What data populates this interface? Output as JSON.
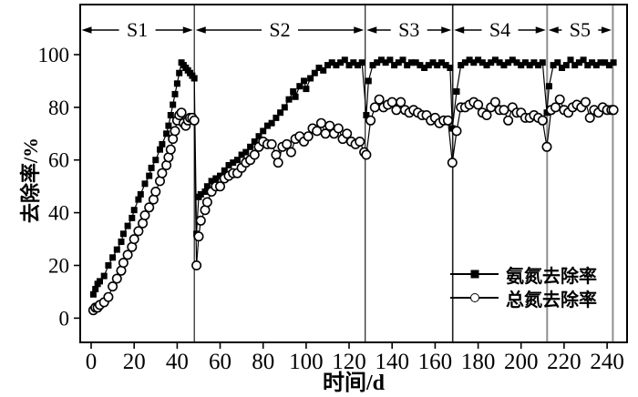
{
  "chart_data": {
    "type": "line",
    "title": "",
    "xlabel": "时间/d",
    "ylabel": "去除率/%",
    "xlim": [
      -5.1,
      249.3
    ],
    "ylim": [
      -9.2,
      119.0
    ],
    "xticks": [
      0,
      20,
      40,
      60,
      80,
      100,
      120,
      140,
      160,
      180,
      200,
      220,
      240
    ],
    "yticks": [
      0,
      20,
      40,
      60,
      80,
      100
    ],
    "grid": false,
    "legend_position": "lower-right-inside",
    "phases": [
      {
        "label": "S1",
        "start": -5.1,
        "end": 48.0
      },
      {
        "label": "S2",
        "start": 48.0,
        "end": 127.5
      },
      {
        "label": "S3",
        "start": 127.5,
        "end": 168.2
      },
      {
        "label": "S4",
        "start": 168.2,
        "end": 212.1
      },
      {
        "label": "S5",
        "start": 212.1,
        "end": 242.7
      }
    ],
    "dividers": [
      {
        "x": 48.0,
        "color": "#1f1f1f",
        "width": 1.2
      },
      {
        "x": 127.5,
        "color": "#1f1f1f",
        "width": 1.2
      },
      {
        "x": 168.2,
        "color": "#1f1f1f",
        "width": 1.6
      },
      {
        "x": 212.1,
        "color": "#8f8f8f",
        "width": 2
      },
      {
        "x": 242.7,
        "color": "#8f8f8f",
        "width": 2
      }
    ],
    "series": [
      {
        "id": "ammonia-nitrogen",
        "name": "氨氮去除率",
        "marker": "filled-square",
        "color": "#000000",
        "points": [
          [
            1,
            9
          ],
          [
            2,
            11
          ],
          [
            3,
            13
          ],
          [
            4,
            14
          ],
          [
            6,
            16
          ],
          [
            8,
            20
          ],
          [
            10,
            23
          ],
          [
            12,
            26
          ],
          [
            14,
            29
          ],
          [
            15,
            32
          ],
          [
            17,
            35
          ],
          [
            19,
            38
          ],
          [
            20,
            41
          ],
          [
            22,
            45
          ],
          [
            23,
            47
          ],
          [
            25,
            51
          ],
          [
            27,
            54
          ],
          [
            28,
            57
          ],
          [
            30,
            60
          ],
          [
            32,
            64
          ],
          [
            33,
            66
          ],
          [
            35,
            70
          ],
          [
            36,
            73
          ],
          [
            37,
            77
          ],
          [
            38,
            81
          ],
          [
            39,
            85
          ],
          [
            40,
            89
          ],
          [
            41,
            93
          ],
          [
            42,
            97
          ],
          [
            43,
            96
          ],
          [
            44,
            95
          ],
          [
            45,
            94
          ],
          [
            46,
            93
          ],
          [
            47,
            92
          ],
          [
            48,
            91
          ],
          [
            49,
            32
          ],
          [
            50,
            46
          ],
          [
            51,
            47
          ],
          [
            53,
            48
          ],
          [
            54,
            50
          ],
          [
            56,
            52
          ],
          [
            58,
            53
          ],
          [
            60,
            54
          ],
          [
            62,
            56
          ],
          [
            64,
            58
          ],
          [
            66,
            59
          ],
          [
            68,
            60
          ],
          [
            70,
            62
          ],
          [
            72,
            63
          ],
          [
            74,
            65
          ],
          [
            76,
            67
          ],
          [
            78,
            69
          ],
          [
            80,
            71
          ],
          [
            82,
            73
          ],
          [
            84,
            74
          ],
          [
            86,
            76
          ],
          [
            88,
            78
          ],
          [
            90,
            80
          ],
          [
            92,
            83
          ],
          [
            94,
            86
          ],
          [
            95,
            84
          ],
          [
            97,
            88
          ],
          [
            99,
            90
          ],
          [
            100,
            87
          ],
          [
            102,
            91
          ],
          [
            104,
            93
          ],
          [
            106,
            95
          ],
          [
            108,
            94
          ],
          [
            110,
            96
          ],
          [
            112,
            97
          ],
          [
            114,
            96
          ],
          [
            116,
            97
          ],
          [
            118,
            98
          ],
          [
            120,
            96
          ],
          [
            122,
            97
          ],
          [
            124,
            96
          ],
          [
            126,
            97
          ],
          [
            128,
            77
          ],
          [
            129,
            90
          ],
          [
            131,
            96
          ],
          [
            133,
            97
          ],
          [
            135,
            98
          ],
          [
            137,
            97
          ],
          [
            139,
            98
          ],
          [
            141,
            96
          ],
          [
            143,
            97
          ],
          [
            145,
            98
          ],
          [
            147,
            96
          ],
          [
            149,
            97
          ],
          [
            151,
            97
          ],
          [
            153,
            96
          ],
          [
            155,
            95
          ],
          [
            157,
            96
          ],
          [
            159,
            97
          ],
          [
            161,
            96
          ],
          [
            163,
            97
          ],
          [
            165,
            96
          ],
          [
            167,
            95
          ],
          [
            168,
            72
          ],
          [
            170,
            86
          ],
          [
            172,
            96
          ],
          [
            174,
            97
          ],
          [
            176,
            98
          ],
          [
            178,
            97
          ],
          [
            180,
            98
          ],
          [
            182,
            97
          ],
          [
            184,
            96
          ],
          [
            186,
            97
          ],
          [
            188,
            98
          ],
          [
            190,
            97
          ],
          [
            192,
            96
          ],
          [
            194,
            97
          ],
          [
            196,
            98
          ],
          [
            198,
            97
          ],
          [
            200,
            96
          ],
          [
            202,
            97
          ],
          [
            204,
            96
          ],
          [
            206,
            97
          ],
          [
            208,
            96
          ],
          [
            210,
            97
          ],
          [
            212,
            78
          ],
          [
            213,
            88
          ],
          [
            215,
            96
          ],
          [
            217,
            97
          ],
          [
            219,
            95
          ],
          [
            221,
            96
          ],
          [
            223,
            98
          ],
          [
            225,
            96
          ],
          [
            227,
            97
          ],
          [
            229,
            98
          ],
          [
            231,
            96
          ],
          [
            233,
            97
          ],
          [
            235,
            96
          ],
          [
            237,
            97
          ],
          [
            239,
            97
          ],
          [
            241,
            96
          ],
          [
            243,
            97
          ]
        ]
      },
      {
        "id": "total-nitrogen",
        "name": "总氮去除率",
        "marker": "open-circle",
        "color": "#000000",
        "points": [
          [
            1,
            3
          ],
          [
            2,
            4
          ],
          [
            3,
            4
          ],
          [
            4,
            5
          ],
          [
            6,
            6
          ],
          [
            8,
            8
          ],
          [
            10,
            12
          ],
          [
            12,
            15
          ],
          [
            14,
            18
          ],
          [
            15,
            21
          ],
          [
            17,
            24
          ],
          [
            19,
            27
          ],
          [
            20,
            30
          ],
          [
            22,
            33
          ],
          [
            24,
            36
          ],
          [
            25,
            39
          ],
          [
            27,
            42
          ],
          [
            29,
            45
          ],
          [
            30,
            48
          ],
          [
            32,
            52
          ],
          [
            33,
            55
          ],
          [
            35,
            58
          ],
          [
            36,
            61
          ],
          [
            37,
            64
          ],
          [
            38,
            68
          ],
          [
            39,
            71
          ],
          [
            40,
            75
          ],
          [
            41,
            77
          ],
          [
            42,
            78
          ],
          [
            43,
            74
          ],
          [
            44,
            73
          ],
          [
            45,
            75
          ],
          [
            46,
            76
          ],
          [
            47,
            76
          ],
          [
            48,
            75
          ],
          [
            49,
            20
          ],
          [
            50,
            31
          ],
          [
            51,
            37
          ],
          [
            53,
            41
          ],
          [
            54,
            44
          ],
          [
            56,
            48
          ],
          [
            58,
            50
          ],
          [
            60,
            50
          ],
          [
            62,
            53
          ],
          [
            64,
            54
          ],
          [
            66,
            55
          ],
          [
            68,
            55
          ],
          [
            70,
            57
          ],
          [
            72,
            59
          ],
          [
            74,
            60
          ],
          [
            76,
            62
          ],
          [
            78,
            65
          ],
          [
            80,
            67
          ],
          [
            82,
            66
          ],
          [
            84,
            66
          ],
          [
            86,
            62
          ],
          [
            87,
            59
          ],
          [
            89,
            65
          ],
          [
            91,
            66
          ],
          [
            93,
            63
          ],
          [
            95,
            68
          ],
          [
            97,
            69
          ],
          [
            99,
            67
          ],
          [
            101,
            69
          ],
          [
            103,
            72
          ],
          [
            105,
            71
          ],
          [
            107,
            74
          ],
          [
            109,
            70
          ],
          [
            111,
            73
          ],
          [
            113,
            70
          ],
          [
            115,
            72
          ],
          [
            117,
            68
          ],
          [
            119,
            70
          ],
          [
            121,
            67
          ],
          [
            123,
            66
          ],
          [
            125,
            67
          ],
          [
            127,
            63
          ],
          [
            128,
            62
          ],
          [
            130,
            75
          ],
          [
            132,
            80
          ],
          [
            134,
            83
          ],
          [
            136,
            80
          ],
          [
            138,
            81
          ],
          [
            140,
            82
          ],
          [
            142,
            79
          ],
          [
            144,
            82
          ],
          [
            146,
            79
          ],
          [
            148,
            78
          ],
          [
            150,
            79
          ],
          [
            152,
            78
          ],
          [
            154,
            77
          ],
          [
            156,
            77
          ],
          [
            158,
            75
          ],
          [
            160,
            76
          ],
          [
            162,
            74
          ],
          [
            164,
            75
          ],
          [
            166,
            75
          ],
          [
            168,
            59
          ],
          [
            170,
            71
          ],
          [
            172,
            80
          ],
          [
            174,
            80
          ],
          [
            176,
            81
          ],
          [
            178,
            82
          ],
          [
            180,
            81
          ],
          [
            182,
            78
          ],
          [
            184,
            77
          ],
          [
            186,
            80
          ],
          [
            188,
            82
          ],
          [
            190,
            79
          ],
          [
            192,
            79
          ],
          [
            194,
            75
          ],
          [
            196,
            80
          ],
          [
            198,
            78
          ],
          [
            200,
            78
          ],
          [
            202,
            76
          ],
          [
            204,
            76
          ],
          [
            206,
            77
          ],
          [
            208,
            76
          ],
          [
            210,
            75
          ],
          [
            212,
            65
          ],
          [
            214,
            79
          ],
          [
            216,
            80
          ],
          [
            218,
            83
          ],
          [
            220,
            79
          ],
          [
            222,
            78
          ],
          [
            224,
            80
          ],
          [
            226,
            81
          ],
          [
            228,
            80
          ],
          [
            230,
            82
          ],
          [
            232,
            76
          ],
          [
            234,
            79
          ],
          [
            236,
            78
          ],
          [
            238,
            80
          ],
          [
            240,
            79
          ],
          [
            242,
            79
          ],
          [
            243,
            79
          ]
        ]
      }
    ]
  }
}
